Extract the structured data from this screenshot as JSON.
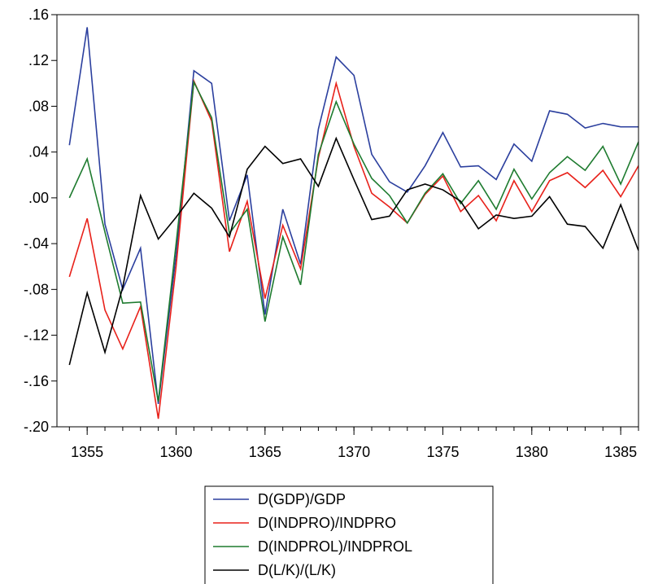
{
  "chart_data": {
    "type": "line",
    "x": [
      1354,
      1355,
      1356,
      1357,
      1358,
      1359,
      1360,
      1361,
      1362,
      1363,
      1364,
      1365,
      1366,
      1367,
      1368,
      1369,
      1370,
      1371,
      1372,
      1373,
      1374,
      1375,
      1376,
      1377,
      1378,
      1379,
      1380,
      1381,
      1382,
      1383,
      1384,
      1385,
      1386
    ],
    "xlim": [
      1353.3,
      1386
    ],
    "ylim": [
      -0.2,
      0.16
    ],
    "xticks": [
      1355,
      1360,
      1365,
      1370,
      1375,
      1380,
      1385
    ],
    "xtick_labels": [
      "1355",
      "1360",
      "1365",
      "1370",
      "1375",
      "1380",
      "1385"
    ],
    "yticks": [
      0.16,
      0.12,
      0.08,
      0.04,
      0.0,
      -0.04,
      -0.08,
      -0.12,
      -0.16,
      -0.2
    ],
    "ytick_labels": [
      ".16",
      ".12",
      ".08",
      ".04",
      ".00",
      "-.04",
      "-.08",
      "-.12",
      "-.16",
      "-.20"
    ],
    "legend_position": "bottom-center",
    "series": [
      {
        "name": "D(GDP)/GDP",
        "color": "#2b3f9e",
        "values": [
          0.046,
          0.149,
          -0.023,
          -0.08,
          -0.044,
          -0.18,
          -0.05,
          0.111,
          0.1,
          -0.02,
          0.02,
          -0.102,
          -0.01,
          -0.058,
          0.06,
          0.123,
          0.107,
          0.038,
          0.014,
          0.005,
          0.028,
          0.057,
          0.027,
          0.028,
          0.016,
          0.047,
          0.032,
          0.076,
          0.073,
          0.061,
          0.065,
          0.062,
          0.062
        ]
      },
      {
        "name": "D(INDPRO)/INDPRO",
        "color": "#e8211a",
        "values": [
          -0.069,
          -0.018,
          -0.098,
          -0.132,
          -0.095,
          -0.193,
          -0.06,
          0.102,
          0.067,
          -0.047,
          -0.003,
          -0.088,
          -0.024,
          -0.062,
          0.035,
          0.1,
          0.045,
          0.004,
          -0.008,
          -0.022,
          0.003,
          0.019,
          -0.012,
          0.002,
          -0.02,
          0.015,
          -0.012,
          0.015,
          0.022,
          0.009,
          0.024,
          0.001,
          0.028
        ]
      },
      {
        "name": "D(INDPROL)/INDPROL",
        "color": "#1e7b2f",
        "values": [
          0.0,
          0.034,
          -0.03,
          -0.092,
          -0.091,
          -0.178,
          -0.04,
          0.101,
          0.07,
          -0.031,
          -0.01,
          -0.108,
          -0.034,
          -0.076,
          0.038,
          0.084,
          0.047,
          0.017,
          0.002,
          -0.022,
          0.004,
          0.021,
          -0.005,
          0.015,
          -0.01,
          0.025,
          -0.001,
          0.022,
          0.036,
          0.024,
          0.045,
          0.012,
          0.049
        ]
      },
      {
        "name": "D(L/K)/(L/K)",
        "color": "#000000",
        "values": [
          -0.146,
          -0.083,
          -0.135,
          -0.078,
          0.002,
          -0.036,
          -0.017,
          0.004,
          -0.009,
          -0.034,
          0.025,
          0.045,
          0.03,
          0.034,
          0.01,
          0.052,
          0.016,
          -0.019,
          -0.016,
          0.007,
          0.012,
          0.007,
          -0.003,
          -0.027,
          -0.015,
          -0.018,
          -0.016,
          0.001,
          -0.023,
          -0.025,
          -0.044,
          -0.006,
          -0.046
        ]
      }
    ]
  }
}
